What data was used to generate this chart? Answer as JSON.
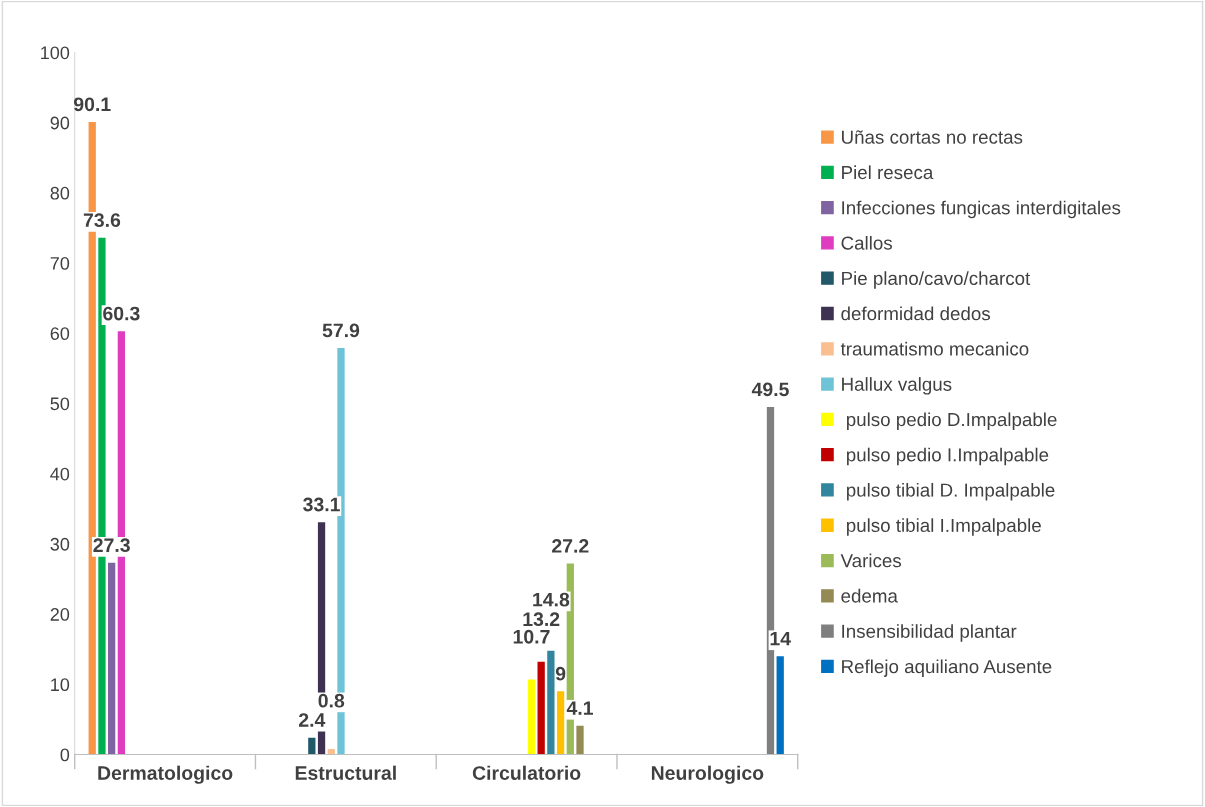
{
  "chart_data": {
    "type": "bar",
    "categories": [
      "Dermatologico",
      "Estructural",
      "Circulatorio",
      "Neurologico"
    ],
    "series": [
      {
        "name": "Uñas cortas no rectas",
        "color": "#f79646",
        "values": [
          90.1,
          null,
          null,
          null
        ]
      },
      {
        "name": "Piel reseca",
        "color": "#00b050",
        "values": [
          73.6,
          null,
          null,
          null
        ]
      },
      {
        "name": "Infecciones fungicas interdigitales",
        "color": "#8064a2",
        "values": [
          27.3,
          null,
          null,
          null
        ]
      },
      {
        "name": "Callos",
        "color": "#e03cc0",
        "values": [
          60.3,
          null,
          null,
          null
        ]
      },
      {
        "name": "Pie plano/cavo/charcot",
        "color": "#215968",
        "values": [
          null,
          2.4,
          null,
          null
        ]
      },
      {
        "name": "deformidad dedos",
        "color": "#3f3151",
        "values": [
          null,
          33.1,
          null,
          null
        ]
      },
      {
        "name": "traumatismo mecanico",
        "color": "#fabf8f",
        "values": [
          null,
          0.8,
          null,
          null
        ]
      },
      {
        "name": "Hallux valgus",
        "color": "#6fc3d6",
        "values": [
          null,
          57.9,
          null,
          null
        ]
      },
      {
        "name": " pulso pedio D.Impalpable",
        "color": "#ffff00",
        "values": [
          null,
          null,
          10.7,
          null
        ]
      },
      {
        "name": " pulso pedio I.Impalpable",
        "color": "#c00000",
        "values": [
          null,
          null,
          13.2,
          null
        ]
      },
      {
        "name": " pulso tibial D. Impalpable",
        "color": "#31859c",
        "values": [
          null,
          null,
          14.8,
          null
        ]
      },
      {
        "name": " pulso tibial I.Impalpable",
        "color": "#ffc000",
        "values": [
          null,
          null,
          9,
          null
        ]
      },
      {
        "name": "Varices",
        "color": "#9bbb59",
        "values": [
          null,
          null,
          27.2,
          null
        ]
      },
      {
        "name": "edema",
        "color": "#948a54",
        "values": [
          null,
          null,
          4.1,
          null
        ]
      },
      {
        "name": "Insensibilidad plantar",
        "color": "#7f7f7f",
        "values": [
          null,
          null,
          null,
          49.5
        ]
      },
      {
        "name": "Reflejo aquiliano Ausente",
        "color": "#0070c0",
        "values": [
          null,
          null,
          null,
          14
        ]
      }
    ],
    "ylim": [
      0,
      100
    ],
    "yticks": [
      0,
      10,
      20,
      30,
      40,
      50,
      60,
      70,
      80,
      90,
      100
    ],
    "data_labels": true,
    "legend": "right",
    "grid": false
  }
}
